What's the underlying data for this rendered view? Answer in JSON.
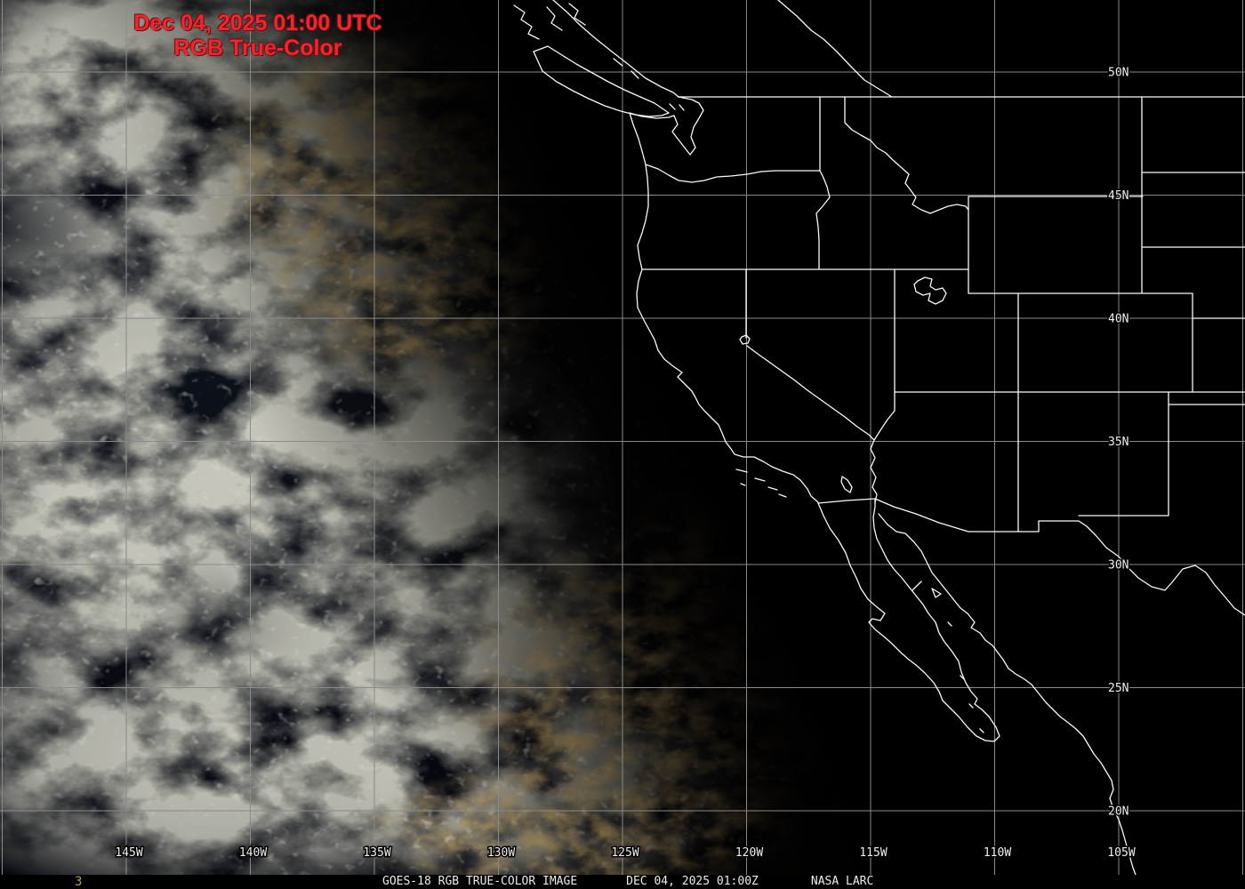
{
  "header": {
    "timestamp_line": "Dec 04, 2025 01:00 UTC",
    "product_line": "RGB True-Color",
    "text_color": "#f1252e"
  },
  "map": {
    "latitude_labels": [
      "50N",
      "45N",
      "40N",
      "35N",
      "30N",
      "25N",
      "20N"
    ],
    "longitude_labels": [
      "145W",
      "140W",
      "135W",
      "130W",
      "125W",
      "120W",
      "115W",
      "110W",
      "105W"
    ],
    "gridline_color": "#8a8a8a",
    "outline_color": "#fafafa",
    "label_color": "#f0f0f0"
  },
  "footer": {
    "frame_number": "3",
    "frame_number_color": "#b5a02c",
    "product_caption": "GOES-18 RGB TRUE-COLOR IMAGE",
    "timestamp_caption": "DEC 04, 2025 01:00Z",
    "credit_caption": "NASA LARC",
    "text_color": "#ececec"
  }
}
